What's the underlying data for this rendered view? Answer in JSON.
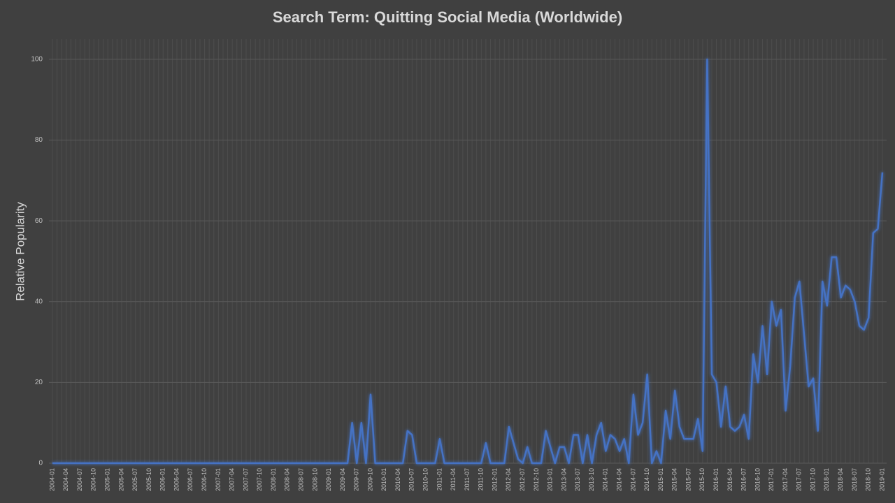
{
  "chart_data": {
    "type": "line",
    "title": "Search Term: Quitting Social Media (Worldwide)",
    "y_label": "Relative Popularity",
    "categories": [
      "2004-01",
      null,
      null,
      "2004-04",
      null,
      null,
      "2004-07",
      null,
      null,
      "2004-10",
      null,
      null,
      "2005-01",
      null,
      null,
      "2005-04",
      null,
      null,
      "2005-07",
      null,
      null,
      "2005-10",
      null,
      null,
      "2006-01",
      null,
      null,
      "2006-04",
      null,
      null,
      "2006-07",
      null,
      null,
      "2006-10",
      null,
      null,
      "2007-01",
      null,
      null,
      "2007-04",
      null,
      null,
      "2007-07",
      null,
      null,
      "2007-10",
      null,
      null,
      "2008-01",
      null,
      null,
      "2008-04",
      null,
      null,
      "2008-07",
      null,
      null,
      "2008-10",
      null,
      null,
      "2009-01",
      null,
      null,
      "2009-04",
      null,
      null,
      "2009-07",
      null,
      null,
      "2009-10",
      null,
      null,
      "2010-01",
      null,
      null,
      "2010-04",
      null,
      null,
      "2010-07",
      null,
      null,
      "2010-10",
      null,
      null,
      "2011-01",
      null,
      null,
      "2011-04",
      null,
      null,
      "2011-07",
      null,
      null,
      "2011-10",
      null,
      null,
      "2012-01",
      null,
      null,
      "2012-04",
      null,
      null,
      "2012-07",
      null,
      null,
      "2012-10",
      null,
      null,
      "2013-01",
      null,
      null,
      "2013-04",
      null,
      null,
      "2013-07",
      null,
      null,
      "2013-10",
      null,
      null,
      "2014-01",
      null,
      null,
      "2014-04",
      null,
      null,
      "2014-07",
      null,
      null,
      "2014-10",
      null,
      null,
      "2015-01",
      null,
      null,
      "2015-04",
      null,
      null,
      "2015-07",
      null,
      null,
      "2015-10",
      null,
      null,
      "2016-01",
      null,
      null,
      "2016-04",
      null,
      null,
      "2016-07",
      null,
      null,
      "2016-10",
      null,
      null,
      "2017-01",
      null,
      null,
      "2017-04",
      null,
      null,
      "2017-07",
      null,
      null,
      "2017-10",
      null,
      null,
      "2018-01",
      null,
      null,
      "2018-04",
      null,
      null,
      "2018-07",
      null,
      null,
      "2018-10",
      null,
      null,
      "2019-01"
    ],
    "values": [
      0,
      0,
      0,
      0,
      0,
      0,
      0,
      0,
      0,
      0,
      0,
      0,
      0,
      0,
      0,
      0,
      0,
      0,
      0,
      0,
      0,
      0,
      0,
      0,
      0,
      0,
      0,
      0,
      0,
      0,
      0,
      0,
      0,
      0,
      0,
      0,
      0,
      0,
      0,
      0,
      0,
      0,
      0,
      0,
      0,
      0,
      0,
      0,
      0,
      0,
      0,
      0,
      0,
      0,
      0,
      0,
      0,
      0,
      0,
      0,
      0,
      0,
      0,
      0,
      0,
      10,
      0,
      10,
      0,
      17,
      0,
      0,
      0,
      0,
      0,
      0,
      0,
      8,
      7,
      0,
      0,
      0,
      0,
      0,
      6,
      0,
      0,
      0,
      0,
      0,
      0,
      0,
      0,
      0,
      5,
      0,
      0,
      0,
      0,
      9,
      5,
      1,
      0,
      4,
      0,
      0,
      0,
      8,
      4,
      0,
      4,
      4,
      0,
      7,
      7,
      0,
      7,
      0,
      7,
      10,
      3,
      7,
      6,
      3,
      6,
      0,
      17,
      7,
      10,
      22,
      0,
      3,
      0,
      13,
      6,
      18,
      9,
      6,
      6,
      6,
      11,
      3,
      100,
      22,
      20,
      9,
      19,
      9,
      8,
      9,
      12,
      6,
      27,
      20,
      34,
      22,
      40,
      34,
      38,
      13,
      24,
      41,
      45,
      32,
      19,
      21,
      8,
      45,
      39,
      51,
      51,
      41,
      44,
      43,
      40,
      34,
      33,
      36,
      57,
      58,
      72
    ],
    "color": "#4472c4",
    "ylim": [
      0,
      105
    ],
    "yticks": [
      0,
      20,
      40,
      60,
      80,
      100
    ],
    "grid": true
  }
}
